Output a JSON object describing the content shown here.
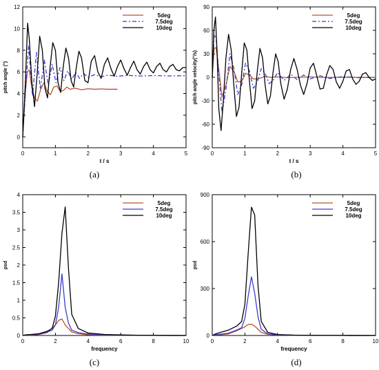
{
  "chart_data": [
    {
      "type": "line",
      "panel_label": "(a)",
      "xlabel": "t / s",
      "ylabel": "pitch angle (°)",
      "xlim": [
        0,
        5
      ],
      "ylim": [
        -1,
        12
      ],
      "xticks": [
        "0",
        "1",
        "2",
        "3",
        "4",
        "5"
      ],
      "yticks": [
        "0",
        "2",
        "4",
        "6",
        "8",
        "10",
        "12"
      ],
      "ytick_values": [
        0,
        2,
        4,
        6,
        8,
        10,
        12
      ],
      "grid": false,
      "legend_position": "top-right",
      "series": [
        {
          "name": "5deg",
          "color": "#b5532a",
          "dash": "solid",
          "x": [
            0,
            0.07,
            0.14,
            0.2,
            0.28,
            0.36,
            0.45,
            0.55,
            0.65,
            0.75,
            0.85,
            0.95,
            1.05,
            1.15,
            1.25,
            1.35,
            1.45,
            1.6,
            1.8,
            2.0,
            2.2,
            2.4,
            2.6,
            2.9
          ],
          "y": [
            0,
            3.8,
            6.0,
            6.2,
            4.5,
            3.6,
            3.3,
            4.4,
            5.0,
            4.2,
            3.9,
            4.6,
            4.7,
            4.2,
            4.3,
            4.6,
            4.4,
            4.5,
            4.35,
            4.45,
            4.4,
            4.42,
            4.4,
            4.4
          ]
        },
        {
          "name": "7.5deg",
          "color": "#3a3ad0",
          "dash": "dashdot",
          "x": [
            0,
            0.08,
            0.18,
            0.3,
            0.42,
            0.54,
            0.66,
            0.78,
            0.9,
            1.02,
            1.14,
            1.26,
            1.38,
            1.5,
            1.62,
            1.74,
            1.86,
            2.0,
            2.2,
            2.4,
            2.6,
            2.9,
            3.2,
            3.6,
            4.0,
            4.5,
            5.0
          ],
          "y": [
            0,
            4.0,
            8.4,
            3.8,
            7.8,
            4.4,
            7.1,
            4.8,
            6.7,
            5.0,
            6.4,
            5.2,
            6.1,
            5.3,
            5.95,
            5.4,
            5.85,
            5.5,
            5.75,
            5.55,
            5.7,
            5.6,
            5.68,
            5.62,
            5.66,
            5.63,
            5.65
          ]
        },
        {
          "name": "10deg",
          "color": "#000000",
          "dash": "solid",
          "x": [
            0,
            0.08,
            0.15,
            0.2,
            0.28,
            0.36,
            0.44,
            0.52,
            0.6,
            0.68,
            0.76,
            0.84,
            0.92,
            1.0,
            1.08,
            1.16,
            1.24,
            1.32,
            1.4,
            1.48,
            1.56,
            1.64,
            1.72,
            1.8,
            1.9,
            2.0,
            2.1,
            2.2,
            2.3,
            2.4,
            2.5,
            2.6,
            2.7,
            2.8,
            2.9,
            3.0,
            3.1,
            3.2,
            3.3,
            3.4,
            3.5,
            3.6,
            3.7,
            3.8,
            3.9,
            4.0,
            4.1,
            4.2,
            4.3,
            4.4,
            4.5,
            4.6,
            4.7,
            4.8,
            4.9,
            5.0
          ],
          "y": [
            0,
            5.0,
            10.5,
            9.0,
            5.0,
            2.8,
            5.8,
            9.3,
            8.0,
            4.5,
            3.6,
            6.5,
            8.7,
            8.0,
            5.0,
            4.1,
            6.5,
            8.2,
            7.3,
            5.2,
            4.6,
            6.4,
            7.9,
            7.3,
            5.2,
            5.0,
            7.0,
            7.5,
            6.0,
            5.4,
            6.7,
            7.3,
            6.3,
            5.6,
            6.5,
            7.1,
            6.3,
            5.7,
            6.4,
            7.0,
            6.2,
            5.8,
            6.5,
            6.9,
            6.2,
            5.9,
            6.5,
            6.8,
            6.2,
            6.0,
            6.5,
            6.7,
            6.2,
            6.1,
            6.4,
            6.4
          ]
        }
      ]
    },
    {
      "type": "line",
      "panel_label": "(b)",
      "xlabel": "t / s",
      "ylabel": "pitch angle velocity(°/s)",
      "xlim": [
        0,
        5
      ],
      "ylim": [
        -90,
        90
      ],
      "xticks": [
        "0",
        "1",
        "2",
        "3",
        "4",
        "5"
      ],
      "yticks": [
        "-90",
        "-60",
        "-30",
        "0",
        "30",
        "60",
        "90"
      ],
      "ytick_values": [
        -90,
        -60,
        -30,
        0,
        30,
        60,
        90
      ],
      "grid": false,
      "legend_position": "top-right",
      "series": [
        {
          "name": "5deg",
          "color": "#b5532a",
          "dash": "solid",
          "x": [
            0,
            0.06,
            0.12,
            0.2,
            0.3,
            0.42,
            0.54,
            0.66,
            0.78,
            0.9,
            1.02,
            1.14,
            1.26,
            1.4,
            1.6,
            1.8,
            2.0,
            2.3,
            2.6,
            3.0,
            3.5,
            4.0,
            4.5,
            5.0
          ],
          "y": [
            0,
            37,
            38,
            10,
            -25,
            -10,
            14,
            8,
            -6,
            -5,
            5,
            3,
            -2,
            -2,
            1,
            0,
            0.5,
            -0.5,
            0,
            0.5,
            -0.3,
            0.2,
            -0.2,
            0
          ]
        },
        {
          "name": "7.5deg",
          "color": "#3a3ad0",
          "dash": "dashdot",
          "x": [
            0,
            0.06,
            0.12,
            0.2,
            0.3,
            0.42,
            0.54,
            0.66,
            0.78,
            0.9,
            1.02,
            1.14,
            1.26,
            1.38,
            1.5,
            1.62,
            1.74,
            1.86,
            2.0,
            2.2,
            2.4,
            2.6,
            2.8,
            3.0,
            3.3,
            3.6,
            4.0,
            4.5,
            5.0
          ],
          "y": [
            0,
            55,
            50,
            5,
            -45,
            -15,
            30,
            12,
            -22,
            -10,
            18,
            8,
            -14,
            -6,
            11,
            5,
            -8,
            -4,
            6,
            -4,
            4,
            -3,
            3,
            -2,
            2,
            -1.5,
            1,
            -0.5,
            0
          ]
        },
        {
          "name": "10deg",
          "color": "#000000",
          "dash": "solid",
          "x": [
            0,
            0.05,
            0.1,
            0.15,
            0.2,
            0.27,
            0.34,
            0.42,
            0.5,
            0.58,
            0.66,
            0.74,
            0.82,
            0.9,
            0.98,
            1.06,
            1.14,
            1.22,
            1.3,
            1.38,
            1.46,
            1.54,
            1.62,
            1.7,
            1.78,
            1.86,
            1.94,
            2.02,
            2.1,
            2.2,
            2.3,
            2.4,
            2.5,
            2.6,
            2.7,
            2.8,
            2.9,
            3.0,
            3.1,
            3.2,
            3.3,
            3.4,
            3.5,
            3.6,
            3.7,
            3.8,
            3.9,
            4.0,
            4.1,
            4.2,
            4.3,
            4.4,
            4.5,
            4.6,
            4.7,
            4.8,
            4.9,
            5.0
          ],
          "y": [
            0,
            60,
            77,
            30,
            -40,
            -68,
            -30,
            25,
            55,
            35,
            -10,
            -50,
            -38,
            5,
            44,
            35,
            -5,
            -40,
            -30,
            8,
            37,
            25,
            -10,
            -34,
            -24,
            6,
            30,
            20,
            -8,
            -28,
            -15,
            10,
            24,
            10,
            -10,
            -22,
            -8,
            12,
            18,
            2,
            -15,
            -14,
            3,
            15,
            10,
            -6,
            -14,
            -5,
            8,
            10,
            -2,
            -9,
            -5,
            4,
            6,
            0,
            -4,
            -2
          ]
        }
      ]
    },
    {
      "type": "line",
      "panel_label": "(c)",
      "xlabel": "frequency",
      "ylabel": "psd",
      "xlim": [
        0,
        10
      ],
      "ylim": [
        0,
        4
      ],
      "xticks": [
        "0",
        "2",
        "4",
        "6",
        "8",
        "10"
      ],
      "yticks": [
        "0",
        "0.5",
        "1",
        "1.5",
        "2",
        "2.5",
        "3",
        "3.5",
        "4"
      ],
      "ytick_values": [
        0,
        0.5,
        1,
        1.5,
        2,
        2.5,
        3,
        3.5,
        4
      ],
      "grid": false,
      "legend_position": "top-right",
      "series": [
        {
          "name": "5deg",
          "color": "#b5532a",
          "dash": "solid",
          "x": [
            0,
            0.2,
            0.5,
            1.0,
            1.5,
            2.0,
            2.2,
            2.4,
            2.6,
            3.0,
            3.4,
            4.0,
            5.0,
            6.0,
            7.0,
            8.0,
            10.0
          ],
          "y": [
            0.0,
            0.01,
            0.01,
            0.03,
            0.08,
            0.3,
            0.43,
            0.47,
            0.3,
            0.1,
            0.05,
            0.02,
            0.01,
            0.005,
            0.003,
            0.002,
            0.0
          ]
        },
        {
          "name": "7.5deg",
          "color": "#3a3ad0",
          "dash": "solid",
          "x": [
            0,
            0.2,
            0.5,
            1.0,
            1.5,
            1.8,
            2.0,
            2.2,
            2.4,
            2.6,
            2.8,
            3.0,
            3.4,
            4.0,
            5.0,
            6.0,
            7.0,
            8.0,
            10.0
          ],
          "y": [
            0.0,
            0.015,
            0.02,
            0.04,
            0.1,
            0.15,
            0.3,
            0.8,
            1.75,
            0.8,
            0.35,
            0.15,
            0.08,
            0.04,
            0.02,
            0.01,
            0.005,
            0.002,
            0.0
          ]
        },
        {
          "name": "10deg",
          "color": "#000000",
          "dash": "solid",
          "x": [
            0,
            0.2,
            0.5,
            1.0,
            1.5,
            1.8,
            2.0,
            2.2,
            2.4,
            2.6,
            2.8,
            3.0,
            3.4,
            4.0,
            5.0,
            6.0,
            7.0,
            8.0,
            10.0
          ],
          "y": [
            0.0,
            0.02,
            0.03,
            0.05,
            0.12,
            0.2,
            0.55,
            1.5,
            2.9,
            3.65,
            1.9,
            0.6,
            0.2,
            0.07,
            0.03,
            0.015,
            0.008,
            0.003,
            0.0
          ]
        }
      ]
    },
    {
      "type": "line",
      "panel_label": "(d)",
      "xlabel": "frequency",
      "ylabel": "psd",
      "xlim": [
        0,
        10
      ],
      "ylim": [
        0,
        900
      ],
      "xticks": [
        "0",
        "2",
        "4",
        "6",
        "8",
        "10"
      ],
      "yticks": [
        "0",
        "300",
        "600",
        "900"
      ],
      "ytick_values": [
        0,
        300,
        600,
        900
      ],
      "grid": false,
      "legend_position": "top-right",
      "series": [
        {
          "name": "5deg",
          "color": "#b5532a",
          "dash": "solid",
          "x": [
            0,
            0.2,
            0.5,
            1.0,
            1.5,
            2.0,
            2.2,
            2.4,
            2.6,
            3.0,
            3.4,
            4.0,
            5.0,
            6.0,
            8.0,
            10.0
          ],
          "y": [
            0,
            4,
            5,
            10,
            30,
            55,
            70,
            72,
            60,
            20,
            8,
            3,
            1,
            0.5,
            0.2,
            0
          ]
        },
        {
          "name": "7.5deg",
          "color": "#3a3ad0",
          "dash": "solid",
          "x": [
            0,
            0.2,
            0.5,
            1.0,
            1.5,
            1.8,
            2.0,
            2.2,
            2.4,
            2.6,
            2.8,
            3.0,
            3.4,
            4.0,
            5.0,
            6.0,
            8.0,
            10.0
          ],
          "y": [
            0,
            5,
            8,
            15,
            35,
            50,
            110,
            250,
            375,
            270,
            120,
            40,
            10,
            4,
            2,
            1,
            0.3,
            0
          ]
        },
        {
          "name": "10deg",
          "color": "#000000",
          "dash": "solid",
          "x": [
            0,
            0.2,
            0.5,
            1.0,
            1.5,
            1.8,
            2.0,
            2.2,
            2.4,
            2.6,
            2.8,
            3.0,
            3.4,
            4.0,
            5.0,
            6.0,
            8.0,
            10.0
          ],
          "y": [
            0,
            10,
            20,
            35,
            60,
            90,
            200,
            520,
            820,
            770,
            320,
            90,
            20,
            6,
            2,
            1,
            0.3,
            0
          ]
        }
      ]
    }
  ]
}
